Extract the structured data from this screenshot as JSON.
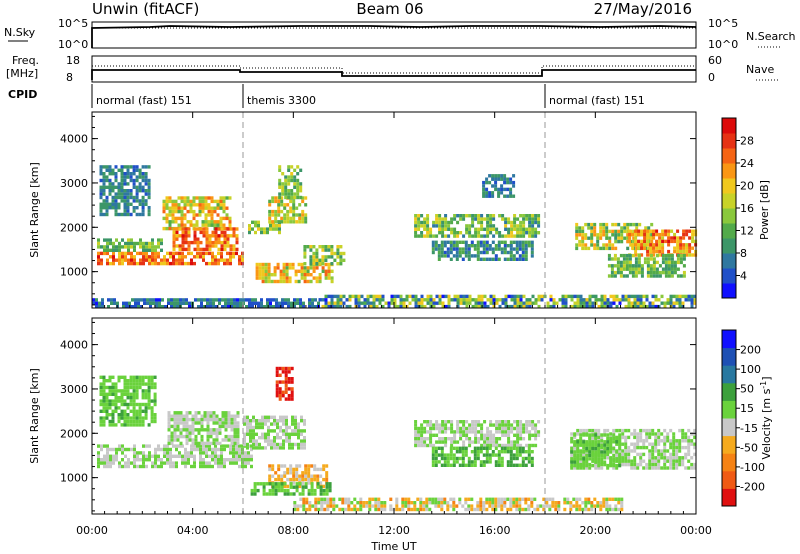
{
  "header": {
    "station": "Unwin (fitACF)",
    "beam": "Beam 06",
    "date": "27/May/2016"
  },
  "strips": {
    "nsky_label": "N.Sky",
    "nsky_ticks": [
      "10^5",
      "10^0"
    ],
    "nsearch_label": "N.Search",
    "nsearch_ticks": [
      "10^5",
      "10^0"
    ],
    "freq_label": "Freq.",
    "freq_unit": "[MHz]",
    "freq_ticks": [
      "18",
      "8"
    ],
    "nave_label": "Nave",
    "nave_ticks": [
      "60",
      "0"
    ],
    "cpid_label": "CPID",
    "programs": [
      {
        "label": "normal (fast) 151",
        "start_hour": 0,
        "end_hour": 6
      },
      {
        "label": "themis 3300",
        "start_hour": 6,
        "end_hour": 18
      },
      {
        "label": "normal (fast) 151",
        "start_hour": 18,
        "end_hour": 24
      }
    ]
  },
  "power_panel": {
    "ylabel": "Slant Range [km]",
    "yticks": [
      "4000",
      "3000",
      "2000",
      "1000"
    ],
    "colorbar_label": "Power [dB]",
    "colorbar_ticks": [
      "28",
      "24",
      "20",
      "16",
      "12",
      "8",
      "4"
    ]
  },
  "velocity_panel": {
    "ylabel": "Slant Range [km]",
    "yticks": [
      "4000",
      "3000",
      "2000",
      "1000"
    ],
    "colorbar_label": "Velocity [m s",
    "colorbar_label_sup": "-1",
    "colorbar_label_tail": "]",
    "colorbar_ticks": [
      "200",
      "100",
      "50",
      "15",
      "-15",
      "-50",
      "-100",
      "-200"
    ]
  },
  "x_axis": {
    "label": "Time UT",
    "ticks": [
      "00:00",
      "04:00",
      "08:00",
      "12:00",
      "16:00",
      "20:00",
      "00:00"
    ]
  },
  "chart_data": [
    {
      "type": "heatmap",
      "panel": "power",
      "x_range_hours": [
        0,
        24
      ],
      "ylim": [
        180,
        4600
      ],
      "ylabel": "Slant Range [km]",
      "colorbar": {
        "label": "Power [dB]",
        "range": [
          0,
          30
        ],
        "colors": [
          "#1010ff",
          "#2050c8",
          "#2f78a0",
          "#3c9668",
          "#52aa4a",
          "#8ac83c",
          "#c8d228",
          "#f0c81e",
          "#fa9614",
          "#f56414",
          "#e63214",
          "#dc0a0a"
        ]
      },
      "clusters": [
        {
          "t": [
            0.2,
            6.0
          ],
          "r": [
            1150,
            1450
          ],
          "v": [
            18,
            28
          ]
        },
        {
          "t": [
            0.2,
            2.8
          ],
          "r": [
            1500,
            1750
          ],
          "v": [
            8,
            16
          ]
        },
        {
          "t": [
            0.3,
            2.3
          ],
          "r": [
            2300,
            3400
          ],
          "v": [
            4,
            10
          ]
        },
        {
          "t": [
            2.8,
            5.5
          ],
          "r": [
            2000,
            2700
          ],
          "v": [
            12,
            24
          ]
        },
        {
          "t": [
            3.2,
            5.8
          ],
          "r": [
            1500,
            2000
          ],
          "v": [
            18,
            28
          ]
        },
        {
          "t": [
            6.2,
            7.4
          ],
          "r": [
            1850,
            2150
          ],
          "v": [
            8,
            20
          ]
        },
        {
          "t": [
            7.0,
            8.5
          ],
          "r": [
            2100,
            2700
          ],
          "v": [
            10,
            22
          ]
        },
        {
          "t": [
            7.4,
            8.3
          ],
          "r": [
            2700,
            3400
          ],
          "v": [
            8,
            18
          ]
        },
        {
          "t": [
            6.5,
            9.5
          ],
          "r": [
            800,
            1200
          ],
          "v": [
            12,
            24
          ]
        },
        {
          "t": [
            8.4,
            10.0
          ],
          "r": [
            1200,
            1600
          ],
          "v": [
            8,
            18
          ]
        },
        {
          "t": [
            12.8,
            17.8
          ],
          "r": [
            1800,
            2300
          ],
          "v": [
            6,
            18
          ]
        },
        {
          "t": [
            13.5,
            17.5
          ],
          "r": [
            1300,
            1700
          ],
          "v": [
            4,
            12
          ]
        },
        {
          "t": [
            15.5,
            16.8
          ],
          "r": [
            2700,
            3200
          ],
          "v": [
            4,
            10
          ]
        },
        {
          "t": [
            19.2,
            22.2
          ],
          "r": [
            1500,
            2100
          ],
          "v": [
            8,
            22
          ]
        },
        {
          "t": [
            21.3,
            24.0
          ],
          "r": [
            1400,
            1950
          ],
          "v": [
            16,
            28
          ]
        },
        {
          "t": [
            20.5,
            23.5
          ],
          "r": [
            900,
            1400
          ],
          "v": [
            8,
            16
          ]
        },
        {
          "t": [
            9.0,
            24.0
          ],
          "r": [
            200,
            480
          ],
          "v": [
            2,
            20
          ]
        },
        {
          "t": [
            0.0,
            9.0
          ],
          "r": [
            200,
            400
          ],
          "v": [
            2,
            10
          ]
        }
      ]
    },
    {
      "type": "heatmap",
      "panel": "velocity",
      "x_range_hours": [
        0,
        24
      ],
      "ylim": [
        180,
        4600
      ],
      "ylabel": "Slant Range [km]",
      "colorbar": {
        "label": "Velocity [m s-1]",
        "range": [
          -250,
          250
        ],
        "colors": [
          "#e01010",
          "#f05a14",
          "#f58214",
          "#f5aa1e",
          "#c8c8c8",
          "#6ad23c",
          "#3ca03c",
          "#2878a0",
          "#1e50b4",
          "#1010ff"
        ]
      },
      "clusters": [
        {
          "t": [
            0.2,
            6.3
          ],
          "r": [
            1250,
            1750
          ],
          "v": [
            -14,
            14
          ]
        },
        {
          "t": [
            0.3,
            2.5
          ],
          "r": [
            2200,
            3300
          ],
          "v": [
            10,
            60
          ]
        },
        {
          "t": [
            3.0,
            5.8
          ],
          "r": [
            1800,
            2500
          ],
          "v": [
            -40,
            40
          ]
        },
        {
          "t": [
            6.0,
            8.5
          ],
          "r": [
            1700,
            2400
          ],
          "v": [
            -14,
            14
          ]
        },
        {
          "t": [
            7.0,
            9.3
          ],
          "r": [
            800,
            1300
          ],
          "v": [
            -110,
            -30
          ]
        },
        {
          "t": [
            6.3,
            9.5
          ],
          "r": [
            600,
            900
          ],
          "v": [
            15,
            80
          ]
        },
        {
          "t": [
            7.3,
            7.9
          ],
          "r": [
            2800,
            3500
          ],
          "v": [
            -240,
            -180
          ]
        },
        {
          "t": [
            12.8,
            17.8
          ],
          "r": [
            1700,
            2300
          ],
          "v": [
            -14,
            14
          ]
        },
        {
          "t": [
            13.5,
            17.5
          ],
          "r": [
            1300,
            1700
          ],
          "v": [
            15,
            80
          ]
        },
        {
          "t": [
            19.0,
            24.0
          ],
          "r": [
            1200,
            2100
          ],
          "v": [
            -14,
            14
          ]
        },
        {
          "t": [
            19.0,
            21.0
          ],
          "r": [
            1300,
            2000
          ],
          "v": [
            15,
            60
          ]
        },
        {
          "t": [
            8.0,
            21.0
          ],
          "r": [
            250,
            550
          ],
          "v": [
            -120,
            40
          ]
        }
      ]
    }
  ]
}
